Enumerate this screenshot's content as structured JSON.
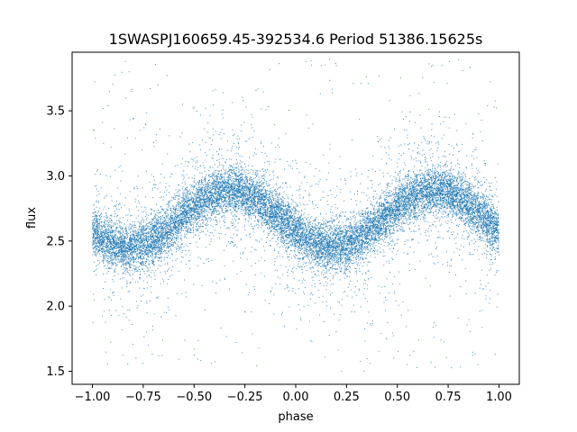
{
  "chart_data": {
    "type": "scatter",
    "title": "1SWASPJ160659.45-392534.6 Period 51386.15625s",
    "xlabel": "phase",
    "ylabel": "flux",
    "xlim": [
      -1.1,
      1.1
    ],
    "ylim": [
      1.4,
      3.95
    ],
    "x_ticks": [
      -1.0,
      -0.75,
      -0.5,
      -0.25,
      0.0,
      0.25,
      0.5,
      0.75,
      1.0
    ],
    "x_tick_labels": [
      "−1.00",
      "−0.75",
      "−0.50",
      "−0.25",
      "0.00",
      "0.25",
      "0.50",
      "0.75",
      "1.00"
    ],
    "y_ticks": [
      1.5,
      2.0,
      2.5,
      3.0,
      3.5
    ],
    "y_tick_labels": [
      "1.5",
      "2.0",
      "2.5",
      "3.0",
      "3.5"
    ],
    "grid": false,
    "legend": "none",
    "point_color": "#1f77b4",
    "series": [
      {
        "model": "folded sinusoid repeated over two phase cycles",
        "x_range": [
          -1.0,
          1.0
        ],
        "mean_flux": 2.67,
        "amplitude": 0.22,
        "peak_phases": [
          -0.35,
          0.68
        ],
        "trough_phases": [
          -0.9,
          0.12
        ],
        "approx_points": 16000
      }
    ]
  }
}
